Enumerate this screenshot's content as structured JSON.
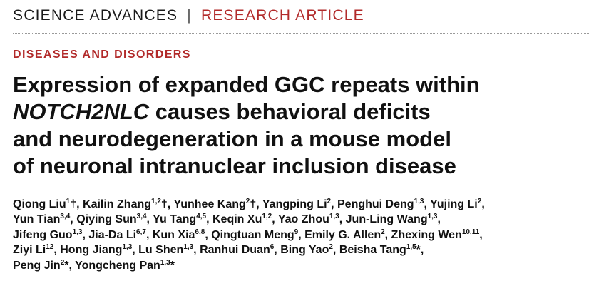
{
  "header": {
    "journal": "SCIENCE ADVANCES",
    "separator": "|",
    "article_type": "RESEARCH ARTICLE"
  },
  "section": "DISEASES AND DISORDERS",
  "title": {
    "line1": "Expression of expanded GGC repeats within",
    "line2_gene": "NOTCH2NLC",
    "line2_rest": " causes behavioral deficits",
    "line3": "and neurodegeneration in a mouse model",
    "line4": "of neuronal intranuclear inclusion disease"
  },
  "authors": [
    [
      {
        "name": "Qiong Liu",
        "sup": "1",
        "mark": "†"
      },
      {
        "name": "Kailin Zhang",
        "sup": "1,2",
        "mark": "†"
      },
      {
        "name": "Yunhee Kang",
        "sup": "2",
        "mark": "†"
      },
      {
        "name": "Yangping Li",
        "sup": "2",
        "mark": ""
      },
      {
        "name": "Penghui Deng",
        "sup": "1,3",
        "mark": ""
      },
      {
        "name": "Yujing Li",
        "sup": "2",
        "mark": ""
      }
    ],
    [
      {
        "name": "Yun Tian",
        "sup": "3,4",
        "mark": ""
      },
      {
        "name": "Qiying Sun",
        "sup": "3,4",
        "mark": ""
      },
      {
        "name": "Yu Tang",
        "sup": "4,5",
        "mark": ""
      },
      {
        "name": "Keqin Xu",
        "sup": "1,2",
        "mark": ""
      },
      {
        "name": "Yao Zhou",
        "sup": "1,3",
        "mark": ""
      },
      {
        "name": "Jun-Ling Wang",
        "sup": "1,3",
        "mark": ""
      }
    ],
    [
      {
        "name": "Jifeng Guo",
        "sup": "1,3",
        "mark": ""
      },
      {
        "name": "Jia-Da Li",
        "sup": "6,7",
        "mark": ""
      },
      {
        "name": "Kun Xia",
        "sup": "6,8",
        "mark": ""
      },
      {
        "name": "Qingtuan Meng",
        "sup": "9",
        "mark": ""
      },
      {
        "name": "Emily G. Allen",
        "sup": "2",
        "mark": ""
      },
      {
        "name": "Zhexing Wen",
        "sup": "10,11",
        "mark": ""
      }
    ],
    [
      {
        "name": "Ziyi Li",
        "sup": "12",
        "mark": ""
      },
      {
        "name": "Hong Jiang",
        "sup": "1,3",
        "mark": ""
      },
      {
        "name": "Lu Shen",
        "sup": "1,3",
        "mark": ""
      },
      {
        "name": "Ranhui Duan",
        "sup": "6",
        "mark": ""
      },
      {
        "name": "Bing Yao",
        "sup": "2",
        "mark": ""
      },
      {
        "name": "Beisha Tang",
        "sup": "1,5",
        "mark": "*"
      }
    ],
    [
      {
        "name": "Peng Jin",
        "sup": "2",
        "mark": "*"
      },
      {
        "name": "Yongcheng Pan",
        "sup": "1,3",
        "mark": "*"
      }
    ]
  ]
}
